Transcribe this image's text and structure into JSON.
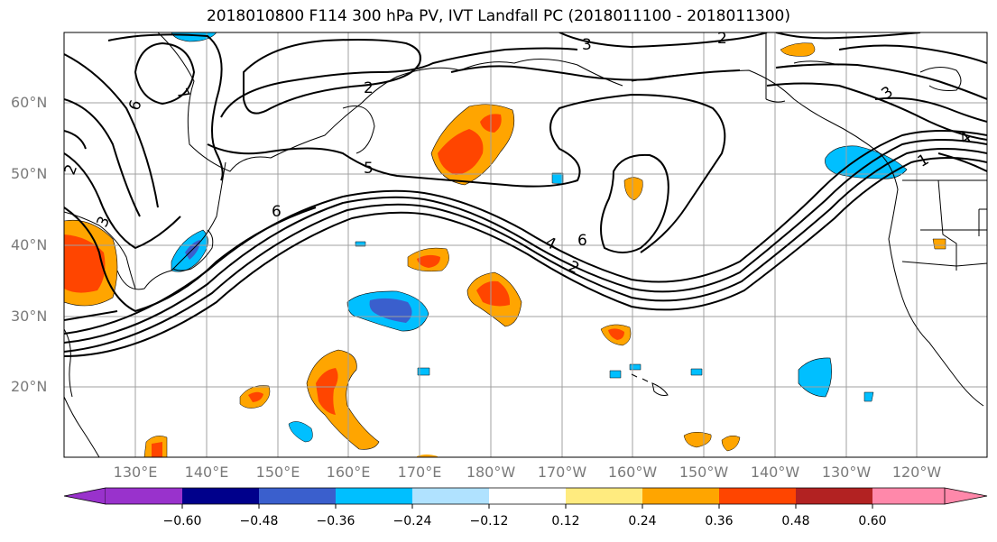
{
  "title": "2018010800 F114 300 hPa PV, IVT Landfall PC (2018011100 - 2018011300)",
  "lat_labels": [
    "60°N",
    "50°N",
    "40°N",
    "30°N",
    "20°N"
  ],
  "lon_labels": [
    "130°E",
    "140°E",
    "150°E",
    "160°E",
    "170°E",
    "180°W",
    "170°W",
    "160°W",
    "150°W",
    "140°W",
    "130°W",
    "120°W"
  ],
  "contour_labels": [
    "6",
    "7",
    "2",
    "3",
    "2",
    "3",
    "4",
    "1",
    "5",
    "6",
    "4",
    "6",
    "2",
    "2",
    "3"
  ],
  "colorbar": {
    "tick_labels": [
      "−0.60",
      "−0.48",
      "−0.36",
      "−0.24",
      "−0.12",
      "0.12",
      "0.24",
      "0.36",
      "0.48",
      "0.60"
    ],
    "colors": [
      "#9932cc",
      "#00008b",
      "#3a5fcd",
      "#00bfff",
      "#b0e2ff",
      "#ffffff",
      "#ffeb7f",
      "#ffa500",
      "#ff4500",
      "#b22222",
      "#ff88aa"
    ]
  },
  "colors": {
    "coast": "#000000",
    "grid": "#a0a0a0",
    "contour": "#000000"
  }
}
